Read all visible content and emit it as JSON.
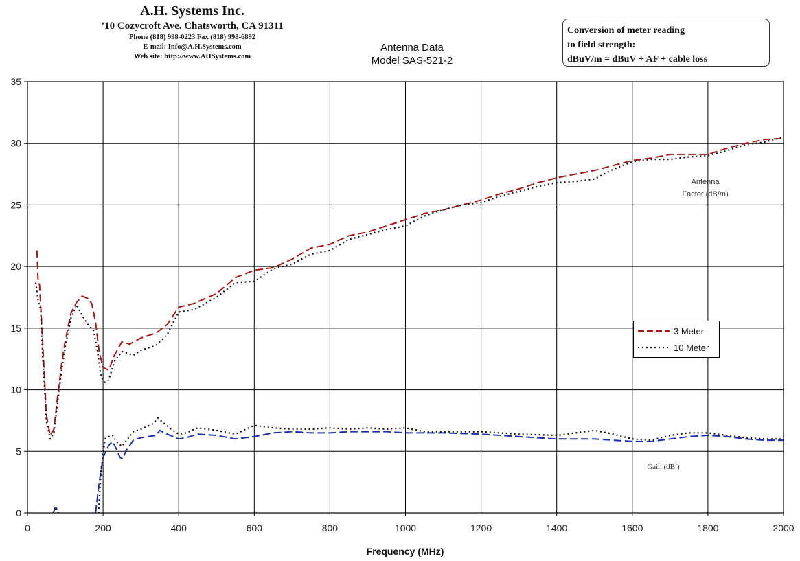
{
  "header": {
    "company_name": "A.H. Systems Inc.",
    "address": "’10 Cozycroft Ave. Chatsworth, CA 91311",
    "phone": "Phone (818) 998-0223 Fax (818) 998-6892",
    "email": "E-mail: Info@A.H.Systems.com",
    "website": "Web site: http://www.AHSystems.com"
  },
  "conversion_box": {
    "line1": "Conversion of meter reading",
    "line2": "to field strength:",
    "line3": "dBuV/m = dBuV + AF + cable loss"
  },
  "colors": {
    "three_meter_af": "#a01818",
    "ten_meter": "#111111",
    "three_meter_gain": "#1c2fa8",
    "grid": "#000000"
  },
  "chart_data": {
    "type": "line",
    "title": "Antenna Data",
    "subtitle": "Model SAS-521-2",
    "xlabel": "Frequency (MHz)",
    "ylabel": "",
    "xlim": [
      0,
      2000
    ],
    "ylim": [
      0,
      35
    ],
    "x_ticks": [
      "0",
      "200",
      "400",
      "600",
      "800",
      "1000",
      "1200",
      "1400",
      "1600",
      "1800",
      "2000"
    ],
    "y_ticks": [
      "0",
      "5",
      "10",
      "15",
      "20",
      "25",
      "30",
      "35"
    ],
    "grid": true,
    "legend_position": "right",
    "annotations": {
      "antenna_factor_line1": "Antenna",
      "antenna_factor_line2": "Factor (dB/m)",
      "gain": "Gain (dBi)"
    },
    "legend": [
      {
        "label": "3 Meter",
        "style": "dashed",
        "color": "#a01818"
      },
      {
        "label": "10 Meter",
        "style": "dotted",
        "color": "#111111"
      }
    ],
    "series": [
      {
        "name": "3 Meter",
        "quantity": "Antenna Factor (dB/m)",
        "style": "dashed",
        "color": "#a01818",
        "points": [
          [
            25,
            21.3
          ],
          [
            28,
            19
          ],
          [
            32,
            18.5
          ],
          [
            40,
            14
          ],
          [
            50,
            8
          ],
          [
            60,
            6.3
          ],
          [
            70,
            6.8
          ],
          [
            80,
            9.5
          ],
          [
            90,
            12
          ],
          [
            100,
            14
          ],
          [
            115,
            16.2
          ],
          [
            130,
            17.1
          ],
          [
            145,
            17.6
          ],
          [
            160,
            17.4
          ],
          [
            170,
            17
          ],
          [
            180,
            15.5
          ],
          [
            190,
            13
          ],
          [
            200,
            11.8
          ],
          [
            215,
            11.6
          ],
          [
            230,
            12.8
          ],
          [
            250,
            13.9
          ],
          [
            270,
            13.7
          ],
          [
            300,
            14.2
          ],
          [
            340,
            14.6
          ],
          [
            370,
            15.3
          ],
          [
            400,
            16.7
          ],
          [
            440,
            17
          ],
          [
            500,
            17.8
          ],
          [
            550,
            19.1
          ],
          [
            600,
            19.7
          ],
          [
            650,
            19.9
          ],
          [
            700,
            20.6
          ],
          [
            750,
            21.5
          ],
          [
            800,
            21.8
          ],
          [
            850,
            22.5
          ],
          [
            900,
            22.8
          ],
          [
            950,
            23.3
          ],
          [
            1000,
            23.8
          ],
          [
            1050,
            24.3
          ],
          [
            1100,
            24.6
          ],
          [
            1150,
            25
          ],
          [
            1200,
            25.4
          ],
          [
            1250,
            25.9
          ],
          [
            1300,
            26.3
          ],
          [
            1350,
            26.8
          ],
          [
            1400,
            27.2
          ],
          [
            1450,
            27.5
          ],
          [
            1500,
            27.8
          ],
          [
            1550,
            28.2
          ],
          [
            1600,
            28.6
          ],
          [
            1650,
            28.8
          ],
          [
            1700,
            29.1
          ],
          [
            1750,
            29.1
          ],
          [
            1800,
            29.1
          ],
          [
            1850,
            29.6
          ],
          [
            1900,
            30
          ],
          [
            1950,
            30.3
          ],
          [
            2000,
            30.4
          ]
        ]
      },
      {
        "name": "10 Meter",
        "quantity": "Antenna Factor (dB/m)",
        "style": "dotted",
        "color": "#111111",
        "points": [
          [
            22,
            18.7
          ],
          [
            28,
            17.3
          ],
          [
            35,
            16.5
          ],
          [
            40,
            13
          ],
          [
            50,
            7.5
          ],
          [
            60,
            6
          ],
          [
            70,
            6.5
          ],
          [
            80,
            9
          ],
          [
            90,
            11.5
          ],
          [
            100,
            13.5
          ],
          [
            115,
            15.8
          ],
          [
            130,
            16.9
          ],
          [
            145,
            16
          ],
          [
            160,
            15.3
          ],
          [
            175,
            14.8
          ],
          [
            185,
            13.2
          ],
          [
            195,
            11
          ],
          [
            205,
            10.6
          ],
          [
            215,
            10.8
          ],
          [
            230,
            12.3
          ],
          [
            250,
            13.1
          ],
          [
            280,
            12.8
          ],
          [
            300,
            13.2
          ],
          [
            340,
            13.6
          ],
          [
            370,
            14.5
          ],
          [
            400,
            16.3
          ],
          [
            440,
            16.5
          ],
          [
            500,
            17.5
          ],
          [
            550,
            18.7
          ],
          [
            600,
            18.8
          ],
          [
            650,
            19.8
          ],
          [
            700,
            20.2
          ],
          [
            750,
            21
          ],
          [
            800,
            21.3
          ],
          [
            850,
            22.2
          ],
          [
            900,
            22.6
          ],
          [
            950,
            23
          ],
          [
            1000,
            23.3
          ],
          [
            1050,
            24.1
          ],
          [
            1100,
            24.6
          ],
          [
            1150,
            25
          ],
          [
            1200,
            25.2
          ],
          [
            1250,
            25.7
          ],
          [
            1300,
            26.1
          ],
          [
            1350,
            26.5
          ],
          [
            1400,
            26.8
          ],
          [
            1450,
            26.9
          ],
          [
            1500,
            27.1
          ],
          [
            1550,
            27.9
          ],
          [
            1600,
            28.5
          ],
          [
            1650,
            28.7
          ],
          [
            1700,
            28.7
          ],
          [
            1750,
            28.9
          ],
          [
            1800,
            29
          ],
          [
            1850,
            29.4
          ],
          [
            1900,
            29.9
          ],
          [
            1950,
            30.1
          ],
          [
            2000,
            30.5
          ]
        ]
      },
      {
        "name": "3 Meter",
        "quantity": "Gain (dBi)",
        "style": "dashed",
        "color": "#1c2fa8",
        "segments": [
          [
            [
              68,
              0
            ],
            [
              72,
              0.3
            ],
            [
              76,
              0.4
            ],
            [
              80,
              0
            ]
          ],
          [
            [
              180,
              0
            ],
            [
              190,
              2.5
            ],
            [
              200,
              4.5
            ],
            [
              215,
              5.5
            ],
            [
              225,
              5.8
            ],
            [
              235,
              5.2
            ],
            [
              245,
              4.5
            ],
            [
              252,
              4.4
            ],
            [
              260,
              5
            ],
            [
              280,
              5.9
            ],
            [
              300,
              6.1
            ],
            [
              320,
              6.2
            ],
            [
              340,
              6.3
            ],
            [
              350,
              6.7
            ],
            [
              370,
              6.4
            ],
            [
              400,
              6
            ],
            [
              420,
              6.1
            ],
            [
              450,
              6.4
            ],
            [
              500,
              6.3
            ],
            [
              550,
              6
            ],
            [
              600,
              6.2
            ],
            [
              650,
              6.5
            ],
            [
              700,
              6.6
            ],
            [
              750,
              6.5
            ],
            [
              800,
              6.5
            ],
            [
              850,
              6.6
            ],
            [
              900,
              6.6
            ],
            [
              950,
              6.6
            ],
            [
              1000,
              6.5
            ],
            [
              1100,
              6.5
            ],
            [
              1200,
              6.4
            ],
            [
              1300,
              6.2
            ],
            [
              1400,
              6
            ],
            [
              1500,
              6
            ],
            [
              1550,
              5.9
            ],
            [
              1600,
              5.8
            ],
            [
              1650,
              5.8
            ],
            [
              1700,
              6
            ],
            [
              1750,
              6.2
            ],
            [
              1800,
              6.3
            ],
            [
              1850,
              6.2
            ],
            [
              1900,
              6
            ],
            [
              1950,
              5.9
            ],
            [
              2000,
              5.9
            ]
          ]
        ]
      },
      {
        "name": "10 Meter",
        "quantity": "Gain (dBi)",
        "style": "dotted",
        "color": "#111111",
        "segments": [
          [
            [
              68,
              0
            ],
            [
              73,
              0.5
            ],
            [
              78,
              0.3
            ],
            [
              82,
              0
            ]
          ],
          [
            [
              188,
              0
            ],
            [
              195,
              3.5
            ],
            [
              205,
              6
            ],
            [
              215,
              6.2
            ],
            [
              225,
              6.3
            ],
            [
              235,
              5.8
            ],
            [
              250,
              5.4
            ],
            [
              265,
              6
            ],
            [
              280,
              6.6
            ],
            [
              300,
              6.8
            ],
            [
              330,
              7.2
            ],
            [
              345,
              7.7
            ],
            [
              360,
              7.3
            ],
            [
              380,
              6.8
            ],
            [
              400,
              6.4
            ],
            [
              420,
              6.5
            ],
            [
              450,
              6.9
            ],
            [
              500,
              6.7
            ],
            [
              550,
              6.4
            ],
            [
              600,
              7.1
            ],
            [
              650,
              6.9
            ],
            [
              700,
              6.8
            ],
            [
              750,
              6.8
            ],
            [
              800,
              6.9
            ],
            [
              850,
              6.8
            ],
            [
              900,
              6.9
            ],
            [
              950,
              6.8
            ],
            [
              1000,
              6.9
            ],
            [
              1050,
              6.6
            ],
            [
              1100,
              6.6
            ],
            [
              1200,
              6.6
            ],
            [
              1300,
              6.4
            ],
            [
              1400,
              6.3
            ],
            [
              1450,
              6.5
            ],
            [
              1500,
              6.7
            ],
            [
              1550,
              6.4
            ],
            [
              1600,
              6
            ],
            [
              1650,
              5.9
            ],
            [
              1700,
              6.3
            ],
            [
              1750,
              6.5
            ],
            [
              1800,
              6.5
            ],
            [
              1850,
              6.3
            ],
            [
              1900,
              6.1
            ],
            [
              1950,
              6
            ],
            [
              2000,
              6
            ]
          ]
        ]
      }
    ]
  }
}
